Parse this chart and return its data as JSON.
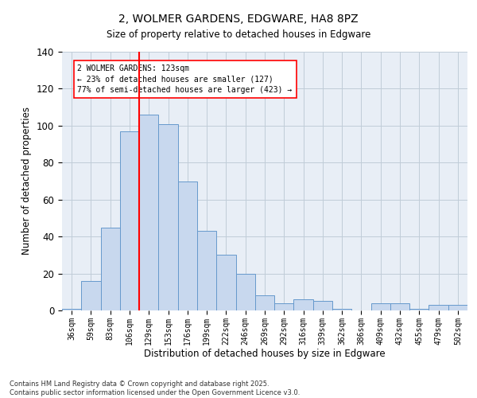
{
  "title1": "2, WOLMER GARDENS, EDGWARE, HA8 8PZ",
  "title2": "Size of property relative to detached houses in Edgware",
  "xlabel": "Distribution of detached houses by size in Edgware",
  "ylabel": "Number of detached properties",
  "bar_labels": [
    "36sqm",
    "59sqm",
    "83sqm",
    "106sqm",
    "129sqm",
    "153sqm",
    "176sqm",
    "199sqm",
    "222sqm",
    "246sqm",
    "269sqm",
    "292sqm",
    "316sqm",
    "339sqm",
    "362sqm",
    "386sqm",
    "409sqm",
    "432sqm",
    "455sqm",
    "479sqm",
    "502sqm"
  ],
  "bar_values": [
    1,
    16,
    45,
    97,
    106,
    101,
    70,
    43,
    30,
    20,
    8,
    4,
    6,
    5,
    1,
    0,
    4,
    4,
    1,
    3,
    3
  ],
  "bar_color": "#c8d8ee",
  "bar_edge_color": "#6699cc",
  "grid_color": "#c0ccd8",
  "bg_color": "#e8eef6",
  "vline_color": "red",
  "annotation_text": "2 WOLMER GARDENS: 123sqm\n← 23% of detached houses are smaller (127)\n77% of semi-detached houses are larger (423) →",
  "footer_line1": "Contains HM Land Registry data © Crown copyright and database right 2025.",
  "footer_line2": "Contains public sector information licensed under the Open Government Licence v3.0.",
  "ylim": [
    0,
    140
  ],
  "yticks": [
    0,
    20,
    40,
    60,
    80,
    100,
    120,
    140
  ],
  "vline_pos": 3.5
}
